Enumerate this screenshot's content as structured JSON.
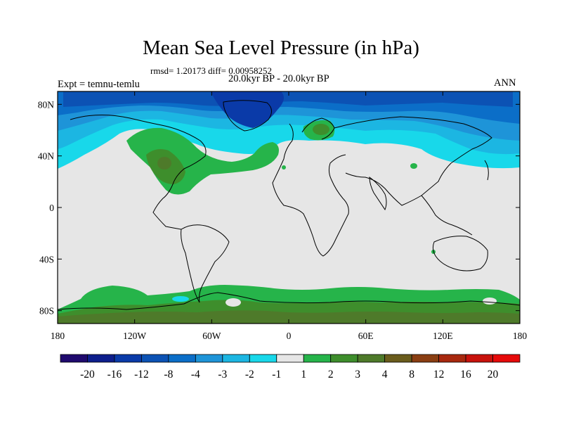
{
  "title": "Mean Sea Level Pressure (in hPa)",
  "stats": "rmsd= 1.20173 diff= 0.00958252",
  "subtitle": "20.0kyr BP - 20.0kyr BP",
  "experiment": "Expt = temnu-temlu",
  "season": "ANN",
  "lat_ticks": [
    {
      "label": "80N",
      "lat": 80
    },
    {
      "label": "40N",
      "lat": 40
    },
    {
      "label": "0",
      "lat": 0
    },
    {
      "label": "40S",
      "lat": -40
    },
    {
      "label": "80S",
      "lat": -80
    }
  ],
  "lon_ticks": [
    {
      "label": "180",
      "lon": -180
    },
    {
      "label": "120W",
      "lon": -120
    },
    {
      "label": "60W",
      "lon": -60
    },
    {
      "label": "0",
      "lon": 0
    },
    {
      "label": "60E",
      "lon": 60
    },
    {
      "label": "120E",
      "lon": 120
    },
    {
      "label": "180",
      "lon": 180
    }
  ],
  "colorbar": {
    "colors": [
      "#1f0a6e",
      "#0d1e8c",
      "#0a3aa8",
      "#0c52b4",
      "#0b6ec8",
      "#1e94d8",
      "#1cb6e2",
      "#18d8ea",
      "#e6e6e6",
      "#26b44a",
      "#3e8e2c",
      "#4e7a2a",
      "#6a5c1c",
      "#8a3e12",
      "#a8280e",
      "#c8120c",
      "#e60a0a"
    ],
    "labels": [
      "-20",
      "-16",
      "-12",
      "-8",
      "-4",
      "-3",
      "-2",
      "-1",
      "1",
      "2",
      "3",
      "4",
      "8",
      "12",
      "16",
      "20"
    ]
  }
}
